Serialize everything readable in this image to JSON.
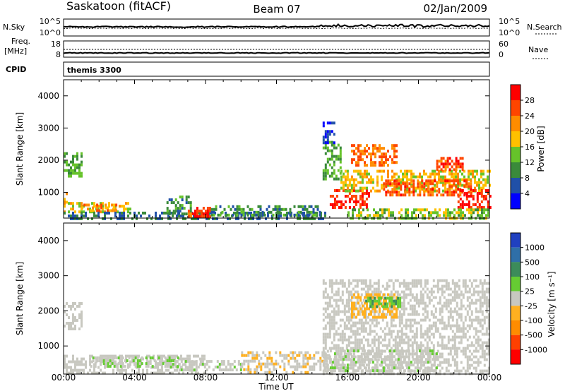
{
  "header": {
    "station": "Saskatoon (fitACF)",
    "beam": "Beam 07",
    "date": "02/Jan/2009"
  },
  "top_panels": {
    "nsky_label": "N.Sky",
    "nsky_ticks": [
      "10^5",
      "10^0"
    ],
    "nsearch_label": "N.Search",
    "nsearch_ticks": [
      "10^5",
      "10^0"
    ],
    "freq_label_1": "Freq.",
    "freq_label_2": "[MHz]",
    "freq_ticks": [
      "18",
      "8"
    ],
    "nave_label": "Nave",
    "nave_ticks": [
      "60",
      "0"
    ],
    "cpid_label": "CPID",
    "cpid_value": "themis 3300"
  },
  "colors": {
    "power_scale": [
      "#0000ff",
      "#2050a8",
      "#3a8a3a",
      "#66c32a",
      "#ffc000",
      "#ff8c00",
      "#ff4500",
      "#ff0000"
    ],
    "velocity_scale": [
      "#2040c0",
      "#2f6fa8",
      "#3c8c5a",
      "#66cc33",
      "#c8c8c0",
      "#ffb020",
      "#ff8c00",
      "#ff4000",
      "#ff0000"
    ],
    "gray_flag": "#c8c8c0"
  },
  "chart_data": [
    {
      "type": "heatmap",
      "name": "power",
      "xlabel": "Time UT",
      "ylabel": "Slant Range [km]",
      "xlim": [
        0,
        24
      ],
      "ylim": [
        200,
        4500
      ],
      "x_ticks": [
        "00:00",
        "04:00",
        "08:00",
        "12:00",
        "16:00",
        "20:00",
        "00:00"
      ],
      "y_ticks": [
        "1000",
        "2000",
        "3000",
        "4000"
      ],
      "colorbar_label": "Power [dB]",
      "colorbar_ticks": [
        "4",
        "8",
        "12",
        "16",
        "20",
        "24",
        "28"
      ],
      "colorbar_range": [
        0,
        32
      ],
      "regions": [
        {
          "t": [
            0.0,
            1.0
          ],
          "r": [
            1500,
            2250
          ],
          "level": 12
        },
        {
          "t": [
            0.0,
            0.2
          ],
          "r": [
            700,
            1000
          ],
          "level": 20
        },
        {
          "t": [
            0.0,
            3.8
          ],
          "r": [
            400,
            700
          ],
          "level": 18
        },
        {
          "t": [
            1.0,
            3.0
          ],
          "r": [
            450,
            650
          ],
          "level": 22
        },
        {
          "t": [
            0.0,
            14.8
          ],
          "r": [
            200,
            400
          ],
          "level": 8
        },
        {
          "t": [
            5.8,
            7.2
          ],
          "r": [
            300,
            900
          ],
          "level": 10
        },
        {
          "t": [
            7.0,
            8.2
          ],
          "r": [
            250,
            550
          ],
          "level": 27
        },
        {
          "t": [
            8.3,
            14.5
          ],
          "r": [
            250,
            600
          ],
          "level": 10
        },
        {
          "t": [
            14.6,
            15.6
          ],
          "r": [
            1400,
            2600
          ],
          "level": 12
        },
        {
          "t": [
            15.0,
            17.2
          ],
          "r": [
            500,
            1100
          ],
          "level": 28
        },
        {
          "t": [
            16.2,
            18.8
          ],
          "r": [
            1800,
            2500
          ],
          "level": 24
        },
        {
          "t": [
            15.6,
            24.0
          ],
          "r": [
            1000,
            1700
          ],
          "level": 18
        },
        {
          "t": [
            18.0,
            23.0
          ],
          "r": [
            900,
            1400
          ],
          "level": 25
        },
        {
          "t": [
            22.2,
            24.0
          ],
          "r": [
            500,
            1100
          ],
          "level": 29
        },
        {
          "t": [
            21.0,
            22.5
          ],
          "r": [
            1700,
            2100
          ],
          "level": 26
        },
        {
          "t": [
            16.0,
            24.0
          ],
          "r": [
            200,
            500
          ],
          "level": 14
        },
        {
          "t": [
            14.6,
            15.3
          ],
          "r": [
            2500,
            3200
          ],
          "level": 4
        }
      ]
    },
    {
      "type": "heatmap",
      "name": "velocity",
      "xlabel": "Time UT",
      "ylabel": "Slant Range [km]",
      "xlim": [
        0,
        24
      ],
      "ylim": [
        200,
        4500
      ],
      "x_ticks": [
        "00:00",
        "04:00",
        "08:00",
        "12:00",
        "16:00",
        "20:00",
        "00:00"
      ],
      "y_ticks": [
        "1000",
        "2000",
        "3000",
        "4000"
      ],
      "colorbar_label": "Velocity [m s⁻¹]",
      "colorbar_ticks": [
        "1000",
        "500",
        "100",
        "25",
        "-25",
        "-100",
        "-500",
        "-1000"
      ],
      "colorbar_range": [
        -1000,
        1000
      ],
      "regions": [
        {
          "t": [
            0.0,
            1.0
          ],
          "r": [
            1500,
            2250
          ],
          "level": 0,
          "flag": "ground"
        },
        {
          "t": [
            0.0,
            8.0
          ],
          "r": [
            250,
            750
          ],
          "level": 0,
          "flag": "ground"
        },
        {
          "t": [
            1.5,
            6.5
          ],
          "r": [
            400,
            700
          ],
          "level": 90
        },
        {
          "t": [
            6.0,
            10.0
          ],
          "r": [
            300,
            600
          ],
          "level": 60
        },
        {
          "t": [
            10.0,
            15.0
          ],
          "r": [
            250,
            850
          ],
          "level": -80
        },
        {
          "t": [
            14.6,
            24.0
          ],
          "r": [
            200,
            2900
          ],
          "level": 0,
          "flag": "ground"
        },
        {
          "t": [
            16.2,
            18.8
          ],
          "r": [
            1800,
            2500
          ],
          "level": -200
        },
        {
          "t": [
            17.0,
            19.0
          ],
          "r": [
            2100,
            2400
          ],
          "level": 300
        },
        {
          "t": [
            15.0,
            21.0
          ],
          "r": [
            300,
            900
          ],
          "level": 60
        }
      ]
    }
  ]
}
